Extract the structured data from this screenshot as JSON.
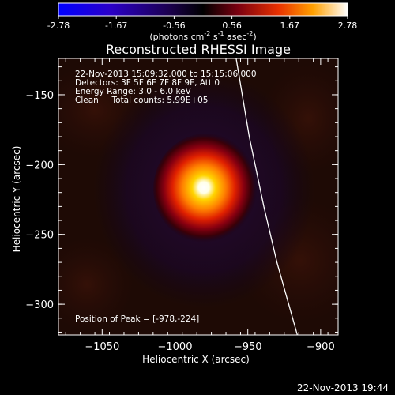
{
  "chart_data": {
    "type": "heatmap",
    "title": "Reconstructed RHESSI Image",
    "xlabel": "Heliocentric X (arcsec)",
    "ylabel": "Heliocentric Y (arcsec)",
    "xlim": [
      -1080,
      -888
    ],
    "ylim": [
      -322,
      -124
    ],
    "xticks": [
      -1050,
      -1000,
      -950,
      -900
    ],
    "yticks": [
      -150,
      -200,
      -250,
      -300
    ],
    "colorbar": {
      "ticks": [
        "-2.78",
        "-1.67",
        "-0.56",
        "0.56",
        "1.67",
        "2.78"
      ],
      "unit_text": "(photons cm",
      "unit_exp1": "-2",
      "unit_mid": " s",
      "unit_exp2": "-1",
      "unit_tail": " asec",
      "unit_exp3": "-2",
      "unit_close": ")"
    },
    "annotations": [
      "22-Nov-2013 15:09:32.000 to 15:15:06.000",
      "Detectors: 3F 5F 6F 7F 8F 9F, Att 0",
      "Energy Range: 3.0 - 6.0 keV",
      "Clean     Total counts: 5.99E+05"
    ],
    "peak_label": "Position of Peak = [-978,-224]",
    "peak": {
      "x": -978,
      "y": -224,
      "value": 2.78
    },
    "limb": [
      [
        -958,
        -124
      ],
      [
        -949,
        -180
      ],
      [
        -939,
        -230
      ],
      [
        -930,
        -270
      ],
      [
        -916,
        -322
      ]
    ]
  },
  "footer_date": "22-Nov-2013 19:44"
}
